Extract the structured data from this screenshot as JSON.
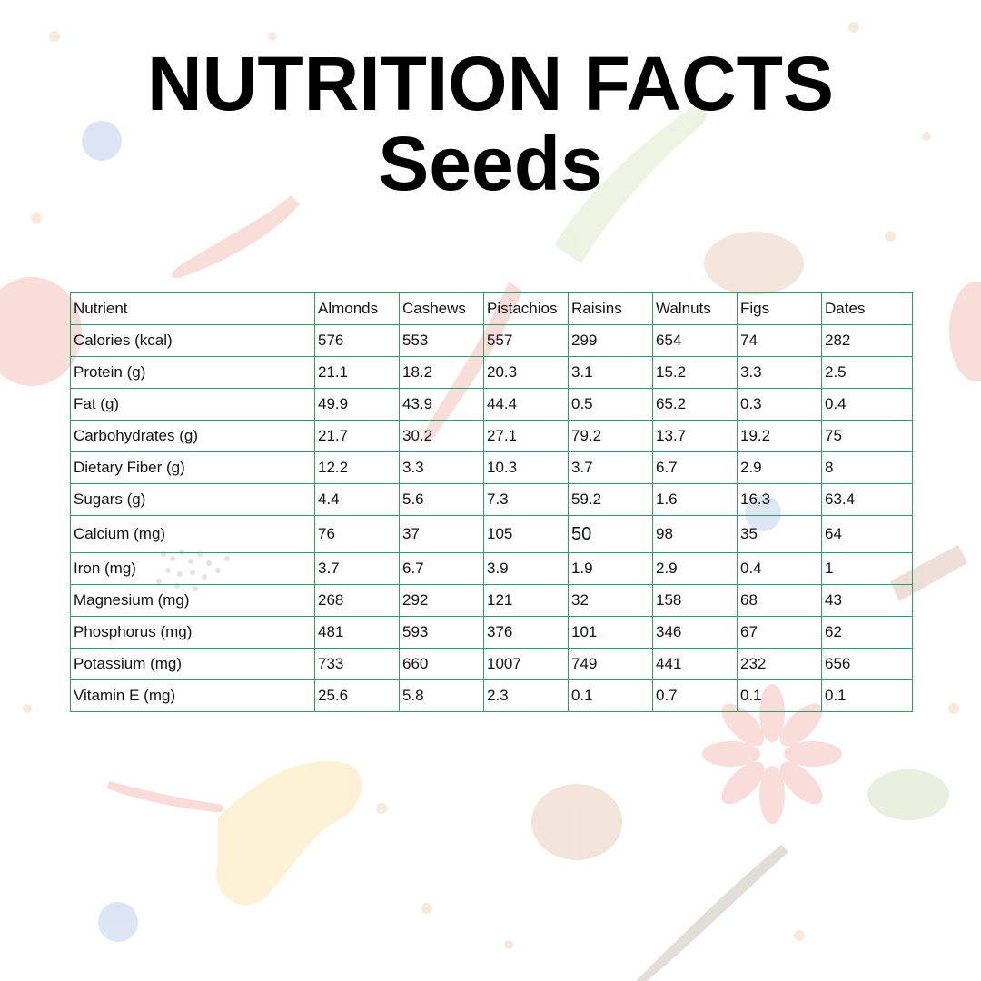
{
  "title": {
    "line1": "NUTRITION FACTS",
    "line2": "Seeds"
  },
  "table": {
    "headers": [
      "Nutrient",
      "Almonds",
      "Cashews",
      "Pistachios",
      "Raisins",
      "Walnuts",
      "Figs",
      "Dates"
    ],
    "rows": [
      [
        "Calories (kcal)",
        "576",
        "553",
        "557",
        "299",
        "654",
        "74",
        "282"
      ],
      [
        "Protein (g)",
        "21.1",
        "18.2",
        "20.3",
        "3.1",
        "15.2",
        "3.3",
        "2.5"
      ],
      [
        "Fat (g)",
        "49.9",
        "43.9",
        "44.4",
        "0.5",
        "65.2",
        "0.3",
        "0.4"
      ],
      [
        "Carbohydrates (g)",
        "21.7",
        "30.2",
        "27.1",
        "79.2",
        "13.7",
        "19.2",
        "75"
      ],
      [
        "Dietary Fiber (g)",
        "12.2",
        "3.3",
        "10.3",
        "3.7",
        "6.7",
        "2.9",
        "8"
      ],
      [
        "Sugars (g)",
        "4.4",
        "5.6",
        "7.3",
        "59.2",
        "1.6",
        "16.3",
        "63.4"
      ],
      [
        "Calcium (mg)",
        "76",
        "37",
        "105",
        "50",
        "98",
        "35",
        "64"
      ],
      [
        "Iron (mg)",
        "3.7",
        "6.7",
        "3.9",
        "1.9",
        "2.9",
        "0.4",
        "1"
      ],
      [
        "Magnesium (mg)",
        "268",
        "292",
        "121",
        "32",
        "158",
        "68",
        "43"
      ],
      [
        "Phosphorus (mg)",
        "481",
        "593",
        "376",
        "101",
        "346",
        "67",
        "62"
      ],
      [
        "Potassium (mg)",
        "733",
        "660",
        "1007",
        "749",
        "441",
        "232",
        "656"
      ],
      [
        "Vitamin E (mg)",
        "25.6",
        "5.8",
        "2.3",
        "0.1",
        "0.7",
        "0.1",
        "0.1"
      ]
    ]
  },
  "colors": {
    "grid_border": "#2e9d6a",
    "title_text": "#000000",
    "background": "#ffffff"
  },
  "background_illustration": "faded-spices-vegetables-pattern"
}
